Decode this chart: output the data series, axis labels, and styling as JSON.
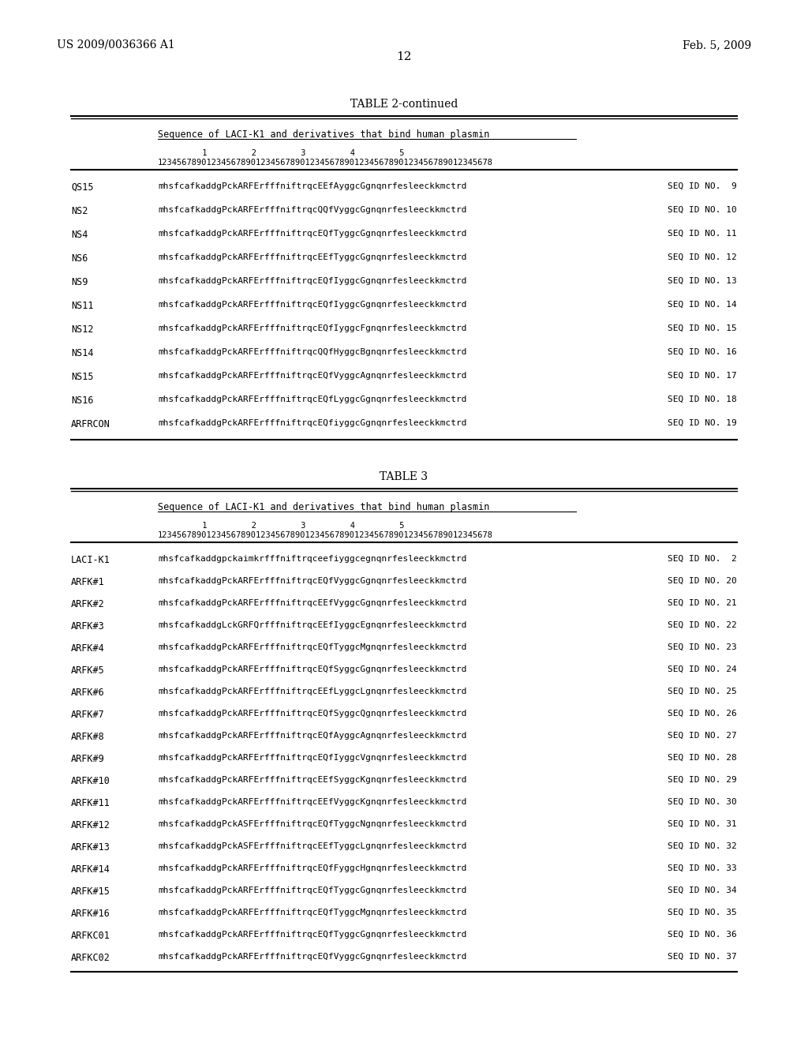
{
  "header_left": "US 2009/0036366 A1",
  "header_right": "Feb. 5, 2009",
  "page_number": "12",
  "table2_title": "TABLE 2-continued",
  "table2_subtitle": "Sequence of LACI-K1 and derivatives that bind human plasmin",
  "table2_ruler": "         1         2         3         4         5",
  "table2_ruler2": "12345678901234567890123456789012345678901234567890123456789012345678",
  "table2_rows": [
    [
      "QS15",
      "mhsfcafkaddgPckARFErfffniftrqcEEfAyggcGgnqnrfesleeckkmctrd",
      "SEQ ID NO.  9"
    ],
    [
      "NS2",
      "mhsfcafkaddgPckARFErfffniftrqcQQfVyggcGgnqnrfesleeckkmctrd",
      "SEQ ID NO. 10"
    ],
    [
      "NS4",
      "mhsfcafkaddgPckARFErfffniftrqcEQfTyggcGgnqnrfesleeckkmctrd",
      "SEQ ID NO. 11"
    ],
    [
      "NS6",
      "mhsfcafkaddgPckARFErfffniftrqcEEfTyggcGgnqnrfesleeckkmctrd",
      "SEQ ID NO. 12"
    ],
    [
      "NS9",
      "mhsfcafkaddgPckARFErfffniftrqcEQfIyggcGgnqnrfesleeckkmctrd",
      "SEQ ID NO. 13"
    ],
    [
      "NS11",
      "mhsfcafkaddgPckARFErfffniftrqcEQfIyggcGgnqnrfesleeckkmctrd",
      "SEQ ID NO. 14"
    ],
    [
      "NS12",
      "mhsfcafkaddgPckARFErfffniftrqcEQfIyggcFgnqnrfesleeckkmctrd",
      "SEQ ID NO. 15"
    ],
    [
      "NS14",
      "mhsfcafkaddgPckARFErfffniftrqcQQfHyggcBgnqnrfesleeckkmctrd",
      "SEQ ID NO. 16"
    ],
    [
      "NS15",
      "mhsfcafkaddgPckARFErfffniftrqcEQfVyggcAgnqnrfesleeckkmctrd",
      "SEQ ID NO. 17"
    ],
    [
      "NS16",
      "mhsfcafkaddgPckARFErfffniftrqcEQfLyggcGgnqnrfesleeckkmctrd",
      "SEQ ID NO. 18"
    ],
    [
      "ARFRCON",
      "mhsfcafkaddgPckARFErfffniftrqcEQfiyggcGgnqnrfesleeckkmctrd",
      "SEQ ID NO. 19"
    ]
  ],
  "table3_title": "TABLE 3",
  "table3_subtitle": "Sequence of LACI-K1 and derivatives that bind human plasmin",
  "table3_ruler": "         1         2         3         4         5",
  "table3_ruler2": "12345678901234567890123456789012345678901234567890123456789012345678",
  "table3_rows": [
    [
      "LACI-K1",
      "mhsfcafkaddgpckaimkrfffniftrqceefiyggcegnqnrfesleeckkmctrd",
      "SEQ ID NO.  2"
    ],
    [
      "ARFK#1",
      "mhsfcafkaddgPckARFErfffniftrqcEQfVyggcGgnqnrfesleeckkmctrd",
      "SEQ ID NO. 20"
    ],
    [
      "ARFK#2",
      "mhsfcafkaddgPckARFErfffniftrqcEEfVyggcGgnqnrfesleeckkmctrd",
      "SEQ ID NO. 21"
    ],
    [
      "ARFK#3",
      "mhsfcafkaddgLckGRFQrfffniftrqcEEfIyggcEgnqnrfesleeckkmctrd",
      "SEQ ID NO. 22"
    ],
    [
      "ARFK#4",
      "mhsfcafkaddgPckARFErfffniftrqcEQfTyggcMgnqnrfesleeckkmctrd",
      "SEQ ID NO. 23"
    ],
    [
      "ARFK#5",
      "mhsfcafkaddgPckARFErfffniftrqcEQfSyggcGgnqnrfesleeckkmctrd",
      "SEQ ID NO. 24"
    ],
    [
      "ARFK#6",
      "mhsfcafkaddgPckARFErfffniftrqcEEfLyggcLgnqnrfesleeckkmctrd",
      "SEQ ID NO. 25"
    ],
    [
      "ARFK#7",
      "mhsfcafkaddgPckARFErfffniftrqcEQfSyggcQgnqnrfesleeckkmctrd",
      "SEQ ID NO. 26"
    ],
    [
      "ARFK#8",
      "mhsfcafkaddgPckARFErfffniftrqcEQfAyggcAgnqnrfesleeckkmctrd",
      "SEQ ID NO. 27"
    ],
    [
      "ARFK#9",
      "mhsfcafkaddgPckARFErfffniftrqcEQfIyggcVgnqnrfesleeckkmctrd",
      "SEQ ID NO. 28"
    ],
    [
      "ARFK#10",
      "mhsfcafkaddgPckARFErfffniftrqcEEfSyggcKgnqnrfesleeckkmctrd",
      "SEQ ID NO. 29"
    ],
    [
      "ARFK#11",
      "mhsfcafkaddgPckARFErfffniftrqcEEfVyggcKgnqnrfesleeckkmctrd",
      "SEQ ID NO. 30"
    ],
    [
      "ARFK#12",
      "mhsfcafkaddgPckASFErfffniftrqcEQfTyggcNgnqnrfesleeckkmctrd",
      "SEQ ID NO. 31"
    ],
    [
      "ARFK#13",
      "mhsfcafkaddgPckASFErfffniftrqcEEfTyggcLgnqnrfesleeckkmctrd",
      "SEQ ID NO. 32"
    ],
    [
      "ARFK#14",
      "mhsfcafkaddgPckARFErfffniftrqcEQfFyggcHgnqnrfesleeckkmctrd",
      "SEQ ID NO. 33"
    ],
    [
      "ARFK#15",
      "mhsfcafkaddgPckARFErfffniftrqcEQfTyggcGgnqnrfesleeckkmctrd",
      "SEQ ID NO. 34"
    ],
    [
      "ARFK#16",
      "mhsfcafkaddgPckARFErfffniftrqcEQfTyggcMgnqnrfesleeckkmctrd",
      "SEQ ID NO. 35"
    ],
    [
      "ARFKC01",
      "mhsfcafkaddgPckARFErfffniftrqcEQfTyggcGgnqnrfesleeckkmctrd",
      "SEQ ID NO. 36"
    ],
    [
      "ARFKC02",
      "mhsfcafkaddgPckARFErfffniftrqcEQfVyggcGgnqnrfesleeckkmctrd",
      "SEQ ID NO. 37"
    ]
  ]
}
